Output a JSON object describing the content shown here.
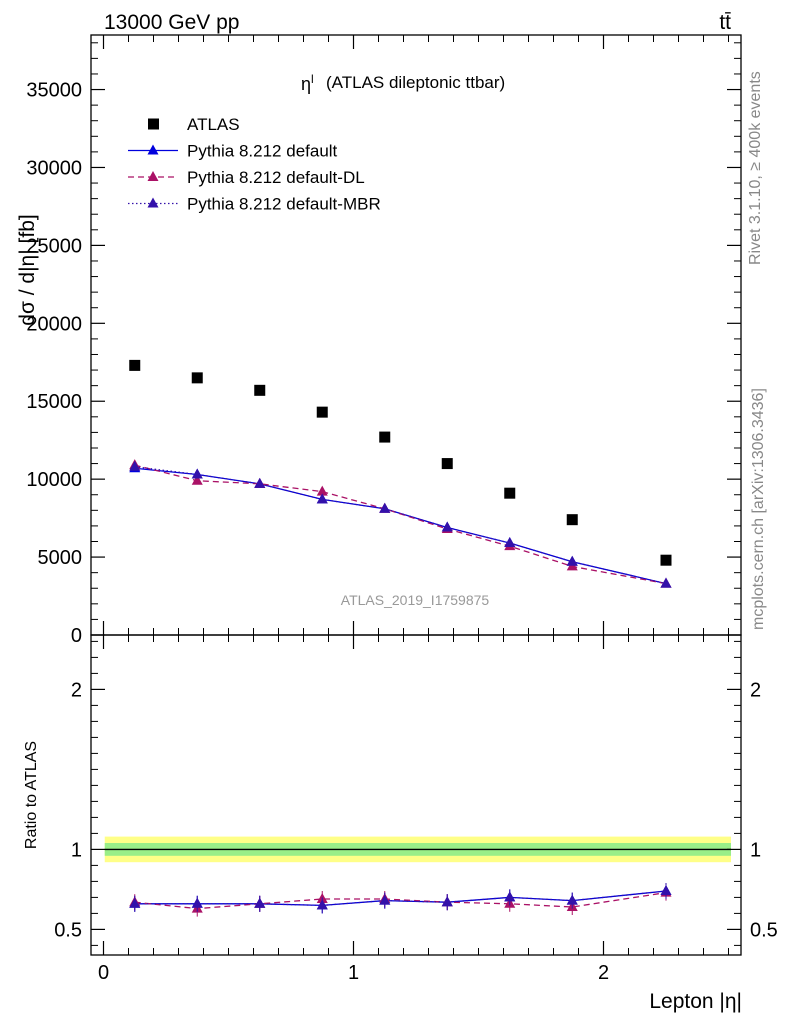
{
  "header": {
    "energy_label": "13000 GeV pp",
    "process_label": "tt̄"
  },
  "side_labels": {
    "rivet": "Rivet 3.1.10, ≥ 400k events",
    "mcplots": "mcplots.cern.ch [arXiv:1306.3436]"
  },
  "chart_data": [
    {
      "type": "scatter",
      "title": "η",
      "title_superscript": "l",
      "subtitle": "(ATLAS dileptonic ttbar)",
      "analysis_label": "ATLAS_2019_I1759875",
      "ylabel": "dσ / d|η| [fb]",
      "xlabel": "",
      "xlim": [
        -0.05,
        2.55
      ],
      "ylim": [
        0,
        38500
      ],
      "y_ticks": [
        0,
        5000,
        10000,
        15000,
        20000,
        25000,
        30000,
        35000
      ],
      "y_tick_labels": [
        "0",
        "5000",
        "10000",
        "15000",
        "20000",
        "25000",
        "30000",
        "35000"
      ],
      "x": [
        0.125,
        0.375,
        0.625,
        0.875,
        1.125,
        1.375,
        1.625,
        1.875,
        2.25
      ],
      "legend_placement": "top-left",
      "series": [
        {
          "name": "ATLAS",
          "style": "data",
          "color": "#000000",
          "values": [
            17300,
            16500,
            15700,
            14300,
            12700,
            11000,
            9100,
            7400,
            4800
          ]
        },
        {
          "name": "Pythia 8.212 default",
          "style": "solid",
          "color": "#0000dd",
          "values": [
            10700,
            10300,
            9700,
            8700,
            8100,
            6900,
            5900,
            4700,
            3300
          ]
        },
        {
          "name": "Pythia 8.212 default-DL",
          "style": "dashed",
          "color": "#aa1166",
          "values": [
            10900,
            9900,
            9700,
            9200,
            8100,
            6800,
            5700,
            4400,
            3300
          ]
        },
        {
          "name": "Pythia 8.212 default-MBR",
          "style": "dotted",
          "color": "#3311aa",
          "values": [
            10800,
            10300,
            9700,
            8700,
            8100,
            6900,
            5900,
            4700,
            3300
          ]
        }
      ]
    },
    {
      "type": "line",
      "ylabel": "Ratio to ATLAS",
      "xlabel": "Lepton |η|",
      "xlim": [
        -0.05,
        2.55
      ],
      "ylim": [
        0.34,
        2.34
      ],
      "y_ticks": [
        0.5,
        1,
        2
      ],
      "y_tick_labels": [
        "0.5",
        "1",
        "2"
      ],
      "x_ticks": [
        0,
        1,
        2
      ],
      "x_tick_labels": [
        "0",
        "1",
        "2"
      ],
      "x": [
        0.125,
        0.375,
        0.625,
        0.875,
        1.125,
        1.375,
        1.625,
        1.875,
        2.25
      ],
      "band_inner": 0.04,
      "band_outer": 0.08,
      "series": [
        {
          "name": "Pythia 8.212 default",
          "style": "solid",
          "color": "#0000dd",
          "values": [
            0.66,
            0.66,
            0.66,
            0.65,
            0.68,
            0.67,
            0.7,
            0.68,
            0.74
          ]
        },
        {
          "name": "Pythia 8.212 default-DL",
          "style": "dashed",
          "color": "#aa1166",
          "values": [
            0.67,
            0.63,
            0.66,
            0.69,
            0.69,
            0.67,
            0.66,
            0.64,
            0.73
          ]
        },
        {
          "name": "Pythia 8.212 default-MBR",
          "style": "dotted",
          "color": "#3311aa",
          "values": [
            0.66,
            0.66,
            0.66,
            0.65,
            0.68,
            0.67,
            0.7,
            0.68,
            0.74
          ]
        }
      ]
    }
  ]
}
